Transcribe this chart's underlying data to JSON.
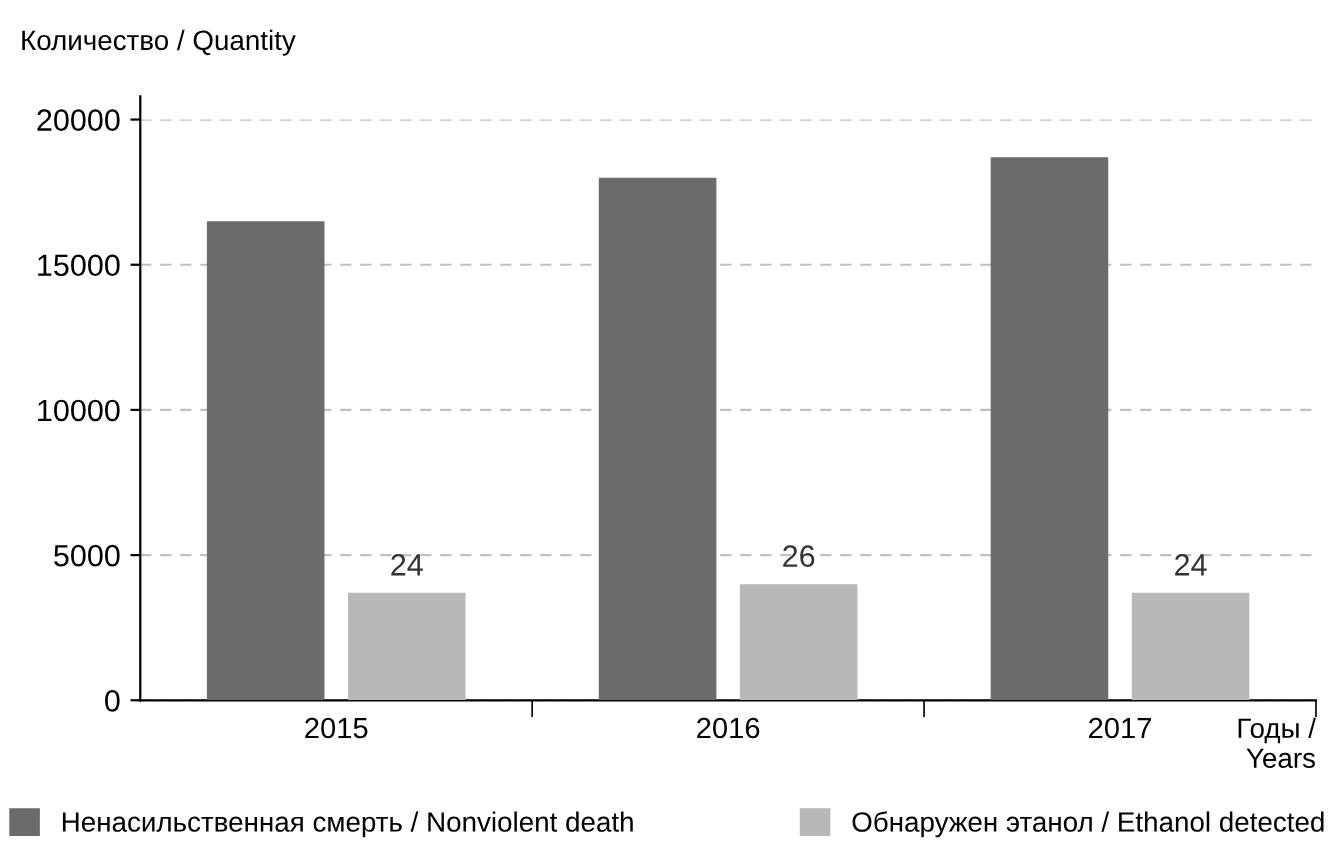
{
  "chart_data": {
    "type": "bar",
    "ylabel": "Количество / Quantity",
    "xlabel": "Годы /\nYears",
    "categories": [
      "2015",
      "2016",
      "2017"
    ],
    "series": [
      {
        "name": "Ненасильственная смерть / Nonviolent death",
        "color": "#6b6b6b",
        "values": [
          16500,
          18000,
          18700
        ]
      },
      {
        "name": "Обнаружен этанол / Ethanol detected",
        "color": "#b8b8b8",
        "values": [
          3700,
          4000,
          3700
        ]
      }
    ],
    "annotations": [
      "24",
      "26",
      "24"
    ],
    "ylim": [
      0,
      20000
    ],
    "yticks": [
      0,
      5000,
      10000,
      15000,
      20000
    ],
    "grid": "y",
    "legend": "bottom"
  }
}
